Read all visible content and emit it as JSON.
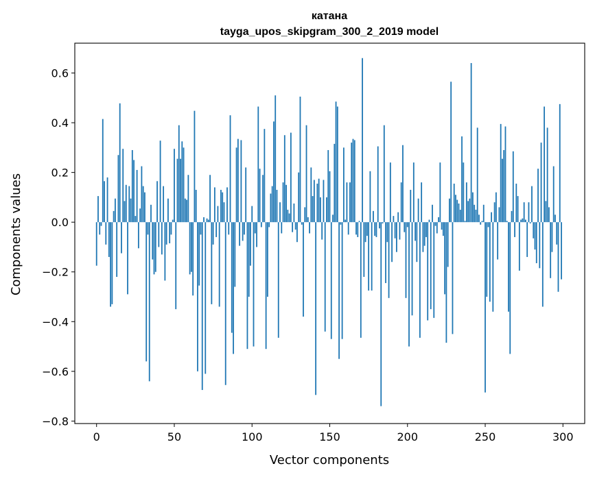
{
  "chart_data": {
    "type": "bar",
    "title": "катана",
    "subtitle": "tayga_upos_skipgram_300_2_2019 model",
    "xlabel": "Vector components",
    "ylabel": "Components values",
    "xlim": [
      -14,
      314
    ],
    "ylim": [
      -0.81,
      0.72
    ],
    "x_ticks": [
      0,
      50,
      100,
      150,
      200,
      250,
      300
    ],
    "x_tick_labels": [
      "0",
      "50",
      "100",
      "150",
      "200",
      "250",
      "300"
    ],
    "y_ticks": [
      -0.8,
      -0.6,
      -0.4,
      -0.2,
      0.0,
      0.2,
      0.4,
      0.6
    ],
    "y_tick_labels": [
      "−0.8",
      "−0.6",
      "−0.4",
      "−0.2",
      "0.0",
      "0.2",
      "0.4",
      "0.6"
    ],
    "grid": false,
    "bar_color": "#1f77b4",
    "x": [
      0,
      1,
      2,
      3,
      4,
      5,
      6,
      7,
      8,
      9,
      10,
      11,
      12,
      13,
      14,
      15,
      16,
      17,
      18,
      19,
      20,
      21,
      22,
      23,
      24,
      25,
      26,
      27,
      28,
      29,
      30,
      31,
      32,
      33,
      34,
      35,
      36,
      37,
      38,
      39,
      40,
      41,
      42,
      43,
      44,
      45,
      46,
      47,
      48,
      49,
      50,
      51,
      52,
      53,
      54,
      55,
      56,
      57,
      58,
      59,
      60,
      61,
      62,
      63,
      64,
      65,
      66,
      67,
      68,
      69,
      70,
      71,
      72,
      73,
      74,
      75,
      76,
      77,
      78,
      79,
      80,
      81,
      82,
      83,
      84,
      85,
      86,
      87,
      88,
      89,
      90,
      91,
      92,
      93,
      94,
      95,
      96,
      97,
      98,
      99,
      100,
      101,
      102,
      103,
      104,
      105,
      106,
      107,
      108,
      109,
      110,
      111,
      112,
      113,
      114,
      115,
      116,
      117,
      118,
      119,
      120,
      121,
      122,
      123,
      124,
      125,
      126,
      127,
      128,
      129,
      130,
      131,
      132,
      133,
      134,
      135,
      136,
      137,
      138,
      139,
      140,
      141,
      142,
      143,
      144,
      145,
      146,
      147,
      148,
      149,
      150,
      151,
      152,
      153,
      154,
      155,
      156,
      157,
      158,
      159,
      160,
      161,
      162,
      163,
      164,
      165,
      166,
      167,
      168,
      169,
      170,
      171,
      172,
      173,
      174,
      175,
      176,
      177,
      178,
      179,
      180,
      181,
      182,
      183,
      184,
      185,
      186,
      187,
      188,
      189,
      190,
      191,
      192,
      193,
      194,
      195,
      196,
      197,
      198,
      199,
      200,
      201,
      202,
      203,
      204,
      205,
      206,
      207,
      208,
      209,
      210,
      211,
      212,
      213,
      214,
      215,
      216,
      217,
      218,
      219,
      220,
      221,
      222,
      223,
      224,
      225,
      226,
      227,
      228,
      229,
      230,
      231,
      232,
      233,
      234,
      235,
      236,
      237,
      238,
      239,
      240,
      241,
      242,
      243,
      244,
      245,
      246,
      247,
      248,
      249,
      250,
      251,
      252,
      253,
      254,
      255,
      256,
      257,
      258,
      259,
      260,
      261,
      262,
      263,
      264,
      265,
      266,
      267,
      268,
      269,
      270,
      271,
      272,
      273,
      274,
      275,
      276,
      277,
      278,
      279,
      280,
      281,
      282,
      283,
      284,
      285,
      286,
      287,
      288,
      289,
      290,
      291,
      292,
      293,
      294,
      295,
      296,
      297,
      298,
      299
    ],
    "values": [
      -0.175,
      0.105,
      -0.05,
      -0.015,
      0.415,
      0.165,
      -0.09,
      0.18,
      -0.14,
      -0.34,
      -0.33,
      0.045,
      0.095,
      -0.22,
      0.27,
      0.478,
      -0.125,
      0.295,
      0.085,
      0.15,
      -0.29,
      0.145,
      0.095,
      0.29,
      0.25,
      0.025,
      0.21,
      -0.105,
      0.055,
      0.225,
      0.145,
      0.12,
      -0.56,
      -0.05,
      -0.64,
      0.07,
      -0.15,
      -0.21,
      -0.2,
      0.165,
      -0.1,
      0.328,
      -0.13,
      0.145,
      -0.235,
      -0.09,
      0.095,
      -0.085,
      -0.05,
      0.01,
      0.295,
      -0.35,
      0.255,
      0.39,
      0.255,
      0.325,
      0.3,
      0.095,
      0.09,
      0.19,
      -0.21,
      -0.2,
      -0.295,
      0.448,
      0.13,
      -0.6,
      -0.255,
      -0.05,
      -0.675,
      0.02,
      -0.61,
      0.015,
      0.01,
      0.19,
      -0.33,
      -0.09,
      0.14,
      -0.06,
      0.065,
      -0.34,
      0.13,
      0.12,
      0.08,
      -0.655,
      0.14,
      -0.05,
      0.43,
      -0.445,
      -0.53,
      -0.26,
      0.3,
      0.335,
      -0.095,
      0.33,
      -0.075,
      -0.05,
      0.22,
      -0.51,
      -0.3,
      -0.175,
      0.065,
      -0.5,
      -0.045,
      -0.1,
      0.465,
      0.215,
      -0.02,
      0.19,
      0.375,
      -0.51,
      -0.3,
      -0.02,
      0.115,
      0.145,
      0.405,
      0.51,
      0.13,
      -0.465,
      0.08,
      -0.045,
      0.16,
      0.35,
      0.15,
      0.05,
      0.035,
      0.36,
      -0.04,
      0.075,
      -0.03,
      -0.08,
      0.2,
      0.505,
      -0.01,
      -0.38,
      0.06,
      0.39,
      0.02,
      -0.045,
      0.22,
      0.105,
      0.17,
      -0.695,
      0.155,
      0.175,
      0.1,
      -0.07,
      0.17,
      -0.44,
      0.1,
      0.29,
      0.205,
      -0.47,
      0.03,
      0.315,
      0.485,
      0.465,
      -0.55,
      -0.01,
      -0.47,
      0.3,
      0.01,
      0.16,
      -0.05,
      0.16,
      0.32,
      0.335,
      0.33,
      -0.05,
      -0.06,
      0.005,
      -0.465,
      0.66,
      -0.22,
      -0.08,
      -0.055,
      -0.275,
      0.205,
      -0.275,
      0.045,
      -0.055,
      -0.06,
      0.305,
      -0.025,
      -0.74,
      -0.005,
      0.39,
      -0.245,
      -0.08,
      -0.305,
      0.24,
      -0.16,
      0.025,
      -0.065,
      -0.12,
      0.04,
      -0.07,
      0.16,
      0.31,
      -0.04,
      -0.305,
      -0.02,
      -0.5,
      0.13,
      -0.375,
      0.24,
      -0.075,
      -0.16,
      0.095,
      -0.465,
      0.16,
      -0.12,
      -0.095,
      -0.06,
      -0.395,
      0.01,
      -0.35,
      0.07,
      -0.385,
      -0.015,
      -0.045,
      0.02,
      0.24,
      -0.03,
      -0.055,
      -0.29,
      -0.485,
      -0.18,
      0.095,
      0.565,
      -0.45,
      0.155,
      0.11,
      0.09,
      0.075,
      0.05,
      0.345,
      0.24,
      0.005,
      0.16,
      0.085,
      0.095,
      0.64,
      0.12,
      0.07,
      0.05,
      0.38,
      0.03,
      -0.01,
      0.005,
      0.07,
      -0.685,
      -0.3,
      -0.02,
      -0.32,
      0.04,
      -0.36,
      0.08,
      0.12,
      -0.15,
      0.06,
      0.395,
      0.255,
      0.29,
      0.385,
      0.005,
      -0.36,
      -0.53,
      0.045,
      0.285,
      -0.06,
      0.155,
      0.105,
      -0.195,
      0.01,
      0.015,
      0.08,
      0.01,
      -0.14,
      0.08,
      -0.005,
      0.145,
      -0.065,
      -0.11,
      -0.165,
      0.215,
      -0.185,
      0.32,
      -0.34,
      0.465,
      0.085,
      0.38,
      0.06,
      -0.225,
      -0.12,
      0.225,
      0.03,
      -0.09,
      -0.28,
      0.475,
      -0.23
    ]
  }
}
